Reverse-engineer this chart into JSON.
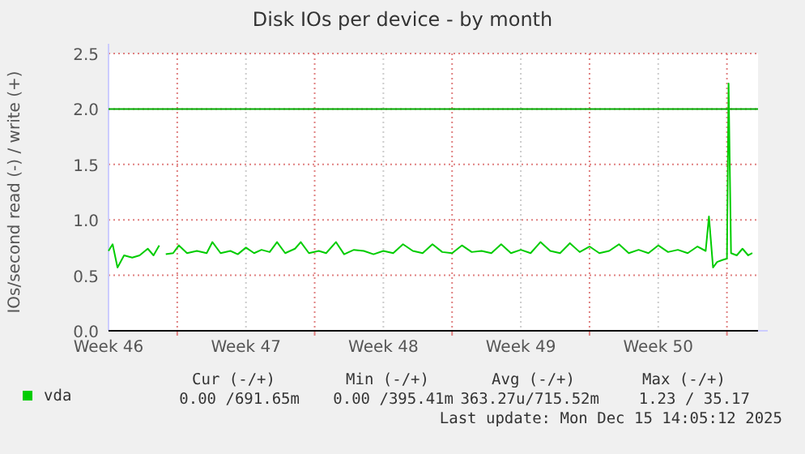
{
  "chart_data": {
    "type": "line",
    "title": "Disk IOs per device - by month",
    "ylabel": "IOs/second read (-) / write (+)",
    "xlim": [
      "2025-11-12T12:00",
      "2025-12-15T14:00"
    ],
    "xticks": [
      {
        "value": "2025-11-12T12:00",
        "label": "Week 46"
      },
      {
        "value": "2025-11-16T00:00",
        "label": null
      },
      {
        "value": "2025-11-19T12:00",
        "label": "Week 47"
      },
      {
        "value": "2025-11-23T00:00",
        "label": null
      },
      {
        "value": "2025-11-26T12:00",
        "label": "Week 48"
      },
      {
        "value": "2025-11-30T00:00",
        "label": null
      },
      {
        "value": "2025-12-03T12:00",
        "label": "Week 49"
      },
      {
        "value": "2025-12-07T00:00",
        "label": null
      },
      {
        "value": "2025-12-10T12:00",
        "label": "Week 50"
      },
      {
        "value": "2025-12-14T00:00",
        "label": null
      }
    ],
    "ylim": [
      0,
      2.5
    ],
    "yticks": [
      {
        "value": 0,
        "label": "0.0"
      },
      {
        "value": 0.5,
        "label": "0.5"
      },
      {
        "value": 1,
        "label": "1.0"
      },
      {
        "value": 1.5,
        "label": "1.5"
      },
      {
        "value": 2,
        "label": "2.0"
      },
      {
        "value": 2.5,
        "label": "2.5"
      }
    ],
    "grid": true,
    "legend": "bottom left",
    "ref_lines": [
      {
        "axis": "y",
        "value": 2,
        "color": "#00aa00"
      }
    ],
    "series": [
      {
        "name": "vda",
        "color": "#00cc00",
        "x": [
          "2025-11-12T12:00",
          "2025-11-12T17:00",
          "2025-11-12T23:00",
          "2025-11-13T07:00",
          "2025-11-13T17:00",
          "2025-11-14T02:00",
          "2025-11-14T12:00",
          "2025-11-14T19:00",
          "2025-11-15T02:00",
          "2025-11-15T05:00",
          "2025-11-15T10:00",
          "2025-11-15T19:00",
          "2025-11-16T02:00",
          "2025-11-16T12:00",
          "2025-11-17T00:00",
          "2025-11-17T12:00",
          "2025-11-17T19:00",
          "2025-11-18T05:00",
          "2025-11-18T17:00",
          "2025-11-19T02:00",
          "2025-11-19T12:00",
          "2025-11-19T22:00",
          "2025-11-20T07:00",
          "2025-11-20T17:00",
          "2025-11-21T02:00",
          "2025-11-21T12:00",
          "2025-11-22T00:00",
          "2025-11-22T07:00",
          "2025-11-22T17:00",
          "2025-11-23T05:00",
          "2025-11-23T14:00",
          "2025-11-24T02:00",
          "2025-11-24T12:00",
          "2025-11-25T00:00",
          "2025-11-25T12:00",
          "2025-11-26T00:00",
          "2025-11-26T12:00",
          "2025-11-27T00:00",
          "2025-11-27T12:00",
          "2025-11-28T00:00",
          "2025-11-28T12:00",
          "2025-11-29T00:00",
          "2025-11-29T12:00",
          "2025-11-30T00:00",
          "2025-11-30T12:00",
          "2025-12-01T00:00",
          "2025-12-01T12:00",
          "2025-12-02T00:00",
          "2025-12-02T12:00",
          "2025-12-03T00:00",
          "2025-12-03T12:00",
          "2025-12-04T00:00",
          "2025-12-04T12:00",
          "2025-12-05T00:00",
          "2025-12-05T12:00",
          "2025-12-06T00:00",
          "2025-12-06T12:00",
          "2025-12-07T00:00",
          "2025-12-07T12:00",
          "2025-12-08T00:00",
          "2025-12-08T12:00",
          "2025-12-09T00:00",
          "2025-12-09T12:00",
          "2025-12-10T00:00",
          "2025-12-10T12:00",
          "2025-12-11T00:00",
          "2025-12-11T12:00",
          "2025-12-12T00:00",
          "2025-12-12T12:00",
          "2025-12-12T22:00",
          "2025-12-13T02:00",
          "2025-12-13T07:00",
          "2025-12-13T12:00",
          "2025-12-13T19:00",
          "2025-12-14T00:00",
          "2025-12-14T02:00",
          "2025-12-14T05:00",
          "2025-12-14T12:00",
          "2025-12-14T19:00",
          "2025-12-15T02:00",
          "2025-12-15T07:00"
        ],
        "values": [
          0.72,
          0.78,
          0.57,
          0.68,
          0.66,
          0.68,
          0.74,
          0.68,
          0.77,
          null,
          0.69,
          0.7,
          0.77,
          0.7,
          0.72,
          0.7,
          0.8,
          0.7,
          0.72,
          0.69,
          0.75,
          0.7,
          0.73,
          0.71,
          0.8,
          0.7,
          0.74,
          0.8,
          0.7,
          0.72,
          0.7,
          0.8,
          0.69,
          0.73,
          0.72,
          0.69,
          0.72,
          0.7,
          0.78,
          0.72,
          0.7,
          0.78,
          0.71,
          0.7,
          0.77,
          0.71,
          0.72,
          0.7,
          0.78,
          0.7,
          0.73,
          0.7,
          0.8,
          0.72,
          0.7,
          0.79,
          0.71,
          0.76,
          0.7,
          0.72,
          0.78,
          0.7,
          0.73,
          0.7,
          0.77,
          0.71,
          0.73,
          0.7,
          0.76,
          0.72,
          1.03,
          0.57,
          0.62,
          0.64,
          0.65,
          2.23,
          0.7,
          0.68,
          0.74,
          0.68,
          0.7
        ]
      }
    ],
    "annotations": [
      "Cur (-/+)",
      "Min (-/+)",
      "Avg (-/+)",
      "Max (-/+)",
      "0.00 /691.65m",
      "0.00 /395.41m",
      "363.27u/715.52m",
      "1.23 / 35.17",
      "Last update: Mon Dec 15 14:05:12 2025"
    ]
  }
}
